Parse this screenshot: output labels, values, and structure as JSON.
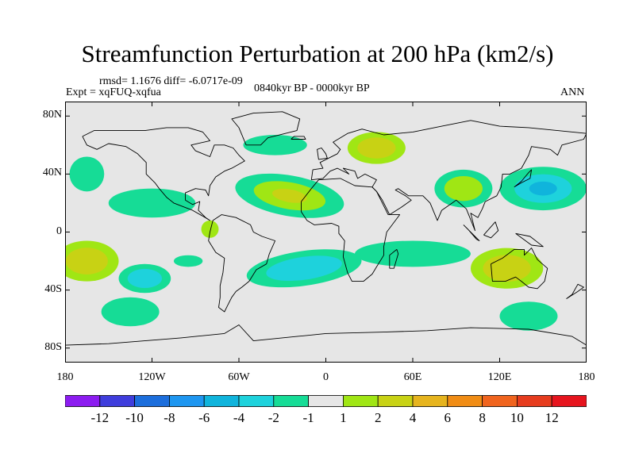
{
  "figure": {
    "title": "Streamfunction Perturbation at 200 hPa (km2/s)",
    "stats": "rmsd= 1.1676 diff= -6.0717e-09",
    "experiment": "Expt = xqFUQ-xqfua",
    "period": "0840kyr BP - 0000kyr BP",
    "season": "ANN"
  },
  "axes": {
    "lat_labels": [
      "80N",
      "40N",
      "0",
      "40S",
      "80S"
    ],
    "lat_values": [
      80,
      40,
      0,
      -40,
      -80
    ],
    "lon_labels": [
      "180",
      "120W",
      "60W",
      "0",
      "60E",
      "120E",
      "180"
    ],
    "lon_values": [
      -180,
      -120,
      -60,
      0,
      60,
      120,
      180
    ],
    "lat_range": [
      -90,
      90
    ],
    "lon_range": [
      -180,
      180
    ]
  },
  "colorbar": {
    "labels": [
      "-12",
      "-10",
      "-8",
      "-6",
      "-4",
      "-2",
      "-1",
      "1",
      "2",
      "4",
      "6",
      "8",
      "10",
      "12"
    ],
    "colors": [
      "#8c1cf0",
      "#3f3ddc",
      "#1c6edc",
      "#1e96f0",
      "#10b4dc",
      "#1ed2dc",
      "#16dc96",
      "#e6e6e6",
      "#a0e614",
      "#c8d214",
      "#e6b41e",
      "#f08c14",
      "#f0641e",
      "#e63c1e",
      "#e6141e"
    ]
  },
  "map": {
    "background_color": "#e6e6e6",
    "anomalies": [
      {
        "name": "anomaly-n-atlantic-africa",
        "lon": -25,
        "lat": 25,
        "rlon": 38,
        "rlat": 14,
        "rot": 10,
        "colors": [
          "#16dc96",
          "#a0e614",
          "#c8d214"
        ]
      },
      {
        "name": "anomaly-n-pacific-west",
        "lon": -120,
        "lat": 20,
        "rlon": 30,
        "rlat": 10,
        "rot": 0,
        "colors": [
          "#16dc96"
        ]
      },
      {
        "name": "anomaly-n-pacific-east",
        "lon": -165,
        "lat": 40,
        "rlon": 12,
        "rlat": 12,
        "rot": 0,
        "colors": [
          "#16dc96"
        ]
      },
      {
        "name": "anomaly-north-atlantic",
        "lon": -35,
        "lat": 60,
        "rlon": 22,
        "rlat": 7,
        "rot": 0,
        "colors": [
          "#16dc96"
        ]
      },
      {
        "name": "anomaly-europe",
        "lon": 35,
        "lat": 58,
        "rlon": 20,
        "rlat": 11,
        "rot": 0,
        "colors": [
          "#a0e614",
          "#c8d214"
        ]
      },
      {
        "name": "anomaly-asia",
        "lon": 95,
        "lat": 30,
        "rlon": 20,
        "rlat": 13,
        "rot": 0,
        "colors": [
          "#16dc96",
          "#a0e614"
        ]
      },
      {
        "name": "anomaly-japan-pacific",
        "lon": 150,
        "lat": 30,
        "rlon": 30,
        "rlat": 15,
        "rot": 0,
        "colors": [
          "#16dc96",
          "#1ed2dc",
          "#10b4dc"
        ]
      },
      {
        "name": "anomaly-s-pacific-tropic",
        "lon": -165,
        "lat": -20,
        "rlon": 22,
        "rlat": 14,
        "rot": 0,
        "colors": [
          "#a0e614",
          "#c8d214"
        ]
      },
      {
        "name": "anomaly-s-pacific-mid",
        "lon": -125,
        "lat": -32,
        "rlon": 18,
        "rlat": 10,
        "rot": 0,
        "colors": [
          "#16dc96",
          "#1ed2dc"
        ]
      },
      {
        "name": "anomaly-s-pacific-high",
        "lon": -135,
        "lat": -55,
        "rlon": 20,
        "rlat": 10,
        "rot": 0,
        "colors": [
          "#16dc96"
        ]
      },
      {
        "name": "anomaly-s-atlantic",
        "lon": -15,
        "lat": -25,
        "rlon": 40,
        "rlat": 12,
        "rot": -8,
        "colors": [
          "#16dc96",
          "#1ed2dc"
        ]
      },
      {
        "name": "anomaly-indian-ocean",
        "lon": 60,
        "lat": -15,
        "rlon": 40,
        "rlat": 9,
        "rot": 0,
        "colors": [
          "#16dc96"
        ]
      },
      {
        "name": "anomaly-australia",
        "lon": 125,
        "lat": -25,
        "rlon": 25,
        "rlat": 14,
        "rot": 0,
        "colors": [
          "#a0e614",
          "#c8d214"
        ]
      },
      {
        "name": "anomaly-southern-ocean",
        "lon": 140,
        "lat": -58,
        "rlon": 20,
        "rlat": 10,
        "rot": 0,
        "colors": [
          "#16dc96"
        ]
      },
      {
        "name": "anomaly-south-america",
        "lon": -80,
        "lat": 2,
        "rlon": 6,
        "rlat": 6,
        "rot": 0,
        "colors": [
          "#a0e614"
        ]
      },
      {
        "name": "anomaly-s-pacific-small",
        "lon": -95,
        "lat": -20,
        "rlon": 10,
        "rlat": 4,
        "rot": 0,
        "colors": [
          "#16dc96"
        ]
      }
    ],
    "coastlines": [
      {
        "name": "north-america-coast",
        "pts": [
          [
            -168,
            66
          ],
          [
            -160,
            70
          ],
          [
            -140,
            70
          ],
          [
            -125,
            70
          ],
          [
            -110,
            72
          ],
          [
            -95,
            72
          ],
          [
            -85,
            69
          ],
          [
            -80,
            63
          ],
          [
            -93,
            60
          ],
          [
            -90,
            56
          ],
          [
            -80,
            52
          ],
          [
            -77,
            60
          ],
          [
            -70,
            60
          ],
          [
            -64,
            58
          ],
          [
            -60,
            53
          ],
          [
            -56,
            49
          ],
          [
            -65,
            44
          ],
          [
            -70,
            42
          ],
          [
            -76,
            38
          ],
          [
            -80,
            32
          ],
          [
            -81,
            25
          ],
          [
            -83,
            29
          ],
          [
            -90,
            30
          ],
          [
            -97,
            27
          ],
          [
            -97,
            22
          ],
          [
            -92,
            19
          ],
          [
            -87,
            21
          ],
          [
            -88,
            15
          ],
          [
            -83,
            10
          ],
          [
            -80,
            8
          ],
          [
            -85,
            11
          ],
          [
            -92,
            15
          ],
          [
            -105,
            20
          ],
          [
            -110,
            24
          ],
          [
            -115,
            30
          ],
          [
            -118,
            34
          ],
          [
            -124,
            40
          ],
          [
            -124,
            48
          ],
          [
            -130,
            54
          ],
          [
            -138,
            59
          ],
          [
            -150,
            61
          ],
          [
            -158,
            57
          ],
          [
            -165,
            60
          ],
          [
            -168,
            66
          ]
        ]
      },
      {
        "name": "south-america-coast",
        "pts": [
          [
            -78,
            8
          ],
          [
            -72,
            12
          ],
          [
            -62,
            10
          ],
          [
            -52,
            5
          ],
          [
            -50,
            0
          ],
          [
            -44,
            -3
          ],
          [
            -35,
            -6
          ],
          [
            -39,
            -15
          ],
          [
            -41,
            -22
          ],
          [
            -48,
            -26
          ],
          [
            -53,
            -34
          ],
          [
            -58,
            -38
          ],
          [
            -62,
            -41
          ],
          [
            -65,
            -45
          ],
          [
            -68,
            -51
          ],
          [
            -70,
            -55
          ],
          [
            -74,
            -52
          ],
          [
            -73,
            -45
          ],
          [
            -73,
            -37
          ],
          [
            -71,
            -28
          ],
          [
            -70,
            -18
          ],
          [
            -76,
            -14
          ],
          [
            -81,
            -6
          ],
          [
            -80,
            0
          ],
          [
            -78,
            8
          ]
        ]
      },
      {
        "name": "greenland-coast",
        "pts": [
          [
            -55,
            60
          ],
          [
            -45,
            60
          ],
          [
            -40,
            65
          ],
          [
            -20,
            70
          ],
          [
            -18,
            78
          ],
          [
            -30,
            83
          ],
          [
            -50,
            82
          ],
          [
            -65,
            78
          ],
          [
            -60,
            72
          ],
          [
            -55,
            60
          ]
        ]
      },
      {
        "name": "africa-coast",
        "pts": [
          [
            -17,
            21
          ],
          [
            -10,
            30
          ],
          [
            -5,
            36
          ],
          [
            10,
            37
          ],
          [
            20,
            32
          ],
          [
            32,
            31
          ],
          [
            35,
            28
          ],
          [
            43,
            12
          ],
          [
            51,
            12
          ],
          [
            42,
            0
          ],
          [
            40,
            -10
          ],
          [
            40,
            -16
          ],
          [
            35,
            -24
          ],
          [
            32,
            -29
          ],
          [
            26,
            -34
          ],
          [
            18,
            -34
          ],
          [
            15,
            -28
          ],
          [
            12,
            -17
          ],
          [
            13,
            -6
          ],
          [
            9,
            -1
          ],
          [
            9,
            4
          ],
          [
            4,
            6
          ],
          [
            -8,
            5
          ],
          [
            -13,
            8
          ],
          [
            -17,
            14
          ],
          [
            -17,
            21
          ]
        ]
      },
      {
        "name": "eurasia-coast",
        "pts": [
          [
            -10,
            36
          ],
          [
            -9,
            43
          ],
          [
            -2,
            44
          ],
          [
            -4,
            48
          ],
          [
            2,
            51
          ],
          [
            8,
            54
          ],
          [
            10,
            57
          ],
          [
            5,
            62
          ],
          [
            15,
            68
          ],
          [
            25,
            71
          ],
          [
            40,
            67
          ],
          [
            60,
            69
          ],
          [
            80,
            73
          ],
          [
            100,
            77
          ],
          [
            120,
            73
          ],
          [
            140,
            72
          ],
          [
            160,
            70
          ],
          [
            180,
            68
          ],
          [
            178,
            64
          ],
          [
            163,
            60
          ],
          [
            160,
            53
          ],
          [
            155,
            57
          ],
          [
            142,
            59
          ],
          [
            140,
            53
          ],
          [
            135,
            44
          ],
          [
            127,
            40
          ],
          [
            122,
            40
          ],
          [
            121,
            31
          ],
          [
            118,
            25
          ],
          [
            110,
            21
          ],
          [
            108,
            16
          ],
          [
            105,
            10
          ],
          [
            100,
            13
          ],
          [
            103,
            1
          ],
          [
            97,
            16
          ],
          [
            90,
            22
          ],
          [
            80,
            15
          ],
          [
            77,
            8
          ],
          [
            72,
            20
          ],
          [
            67,
            25
          ],
          [
            57,
            25
          ],
          [
            50,
            30
          ],
          [
            48,
            29
          ],
          [
            55,
            25
          ],
          [
            59,
            22
          ],
          [
            52,
            17
          ],
          [
            44,
            12
          ],
          [
            39,
            22
          ],
          [
            35,
            28
          ],
          [
            32,
            31
          ],
          [
            35,
            36
          ],
          [
            27,
            40
          ],
          [
            22,
            37
          ],
          [
            20,
            42
          ],
          [
            12,
            44
          ],
          [
            16,
            40
          ],
          [
            8,
            44
          ],
          [
            3,
            42
          ],
          [
            -2,
            37
          ],
          [
            -10,
            36
          ]
        ]
      },
      {
        "name": "australia-coast",
        "pts": [
          [
            114,
            -22
          ],
          [
            122,
            -18
          ],
          [
            130,
            -12
          ],
          [
            137,
            -12
          ],
          [
            137,
            -16
          ],
          [
            142,
            -11
          ],
          [
            146,
            -19
          ],
          [
            153,
            -25
          ],
          [
            151,
            -34
          ],
          [
            146,
            -39
          ],
          [
            140,
            -38
          ],
          [
            135,
            -34
          ],
          [
            131,
            -31
          ],
          [
            124,
            -34
          ],
          [
            115,
            -34
          ],
          [
            114,
            -22
          ]
        ]
      },
      {
        "name": "antarctica-coast",
        "pts": [
          [
            -180,
            -78
          ],
          [
            -150,
            -77
          ],
          [
            -100,
            -73
          ],
          [
            -70,
            -70
          ],
          [
            -60,
            -64
          ],
          [
            -50,
            -75
          ],
          [
            -20,
            -72
          ],
          [
            0,
            -70
          ],
          [
            40,
            -69
          ],
          [
            70,
            -68
          ],
          [
            100,
            -66
          ],
          [
            140,
            -67
          ],
          [
            170,
            -72
          ],
          [
            180,
            -78
          ]
        ]
      },
      {
        "name": "uk-coast",
        "pts": [
          [
            -5,
            50
          ],
          [
            1,
            51
          ],
          [
            0,
            54
          ],
          [
            -3,
            58
          ],
          [
            -6,
            57
          ],
          [
            -5,
            50
          ]
        ]
      },
      {
        "name": "japan-coast",
        "pts": [
          [
            130,
            31
          ],
          [
            135,
            34
          ],
          [
            141,
            37
          ],
          [
            142,
            43
          ],
          [
            140,
            41
          ],
          [
            135,
            35
          ],
          [
            130,
            31
          ]
        ]
      },
      {
        "name": "madagascar-coast",
        "pts": [
          [
            44,
            -25
          ],
          [
            47,
            -25
          ],
          [
            50,
            -15
          ],
          [
            49,
            -12
          ],
          [
            44,
            -16
          ],
          [
            44,
            -25
          ]
        ]
      },
      {
        "name": "new-zealand-coast",
        "pts": [
          [
            166,
            -46
          ],
          [
            174,
            -41
          ],
          [
            178,
            -38
          ],
          [
            174,
            -36
          ],
          [
            170,
            -43
          ],
          [
            166,
            -46
          ]
        ]
      },
      {
        "name": "borneo-coast",
        "pts": [
          [
            109,
            -2
          ],
          [
            117,
            7
          ],
          [
            119,
            1
          ],
          [
            114,
            -4
          ],
          [
            109,
            -2
          ]
        ]
      },
      {
        "name": "sumatra-coast",
        "pts": [
          [
            95,
            5
          ],
          [
            106,
            -6
          ],
          [
            104,
            -5
          ],
          [
            98,
            2
          ],
          [
            95,
            5
          ]
        ]
      },
      {
        "name": "new-guinea-coast",
        "pts": [
          [
            131,
            -1
          ],
          [
            141,
            -3
          ],
          [
            150,
            -10
          ],
          [
            142,
            -9
          ],
          [
            131,
            -1
          ]
        ]
      },
      {
        "name": "iceland-coast",
        "pts": [
          [
            -24,
            64
          ],
          [
            -14,
            64
          ],
          [
            -15,
            66
          ],
          [
            -22,
            66
          ],
          [
            -24,
            64
          ]
        ]
      }
    ]
  }
}
